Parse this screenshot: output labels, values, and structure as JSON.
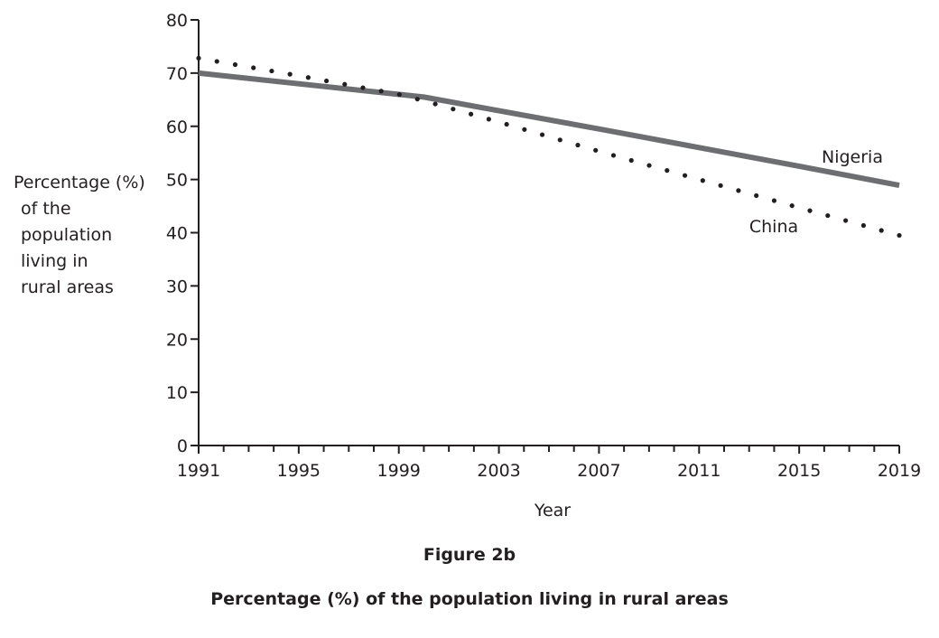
{
  "chart_data": {
    "type": "line",
    "title": "Figure 2b",
    "subtitle": "Percentage (%) of the population living in rural areas",
    "xlabel": "Year",
    "ylabel_lines": [
      "Percentage (%)",
      "of the",
      "population",
      "living in",
      "rural areas"
    ],
    "xlim": [
      1991,
      2019
    ],
    "ylim": [
      0,
      80
    ],
    "x_ticks": [
      "1991",
      "1995",
      "1999",
      "2003",
      "2007",
      "2011",
      "2015",
      "2019"
    ],
    "y_ticks": [
      "0",
      "10",
      "20",
      "30",
      "40",
      "50",
      "60",
      "70",
      "80"
    ],
    "grid": false,
    "series": [
      {
        "name": "Nigeria",
        "style": "solid",
        "color": "#6d6e71",
        "x": [
          1991,
          2000,
          2007,
          2011,
          2015,
          2019
        ],
        "y": [
          70,
          65.5,
          59.5,
          56,
          52.5,
          48.9
        ]
      },
      {
        "name": "China",
        "style": "dotted",
        "color": "#231f20",
        "x": [
          1991,
          1995,
          1999,
          2000,
          2003,
          2007,
          2011,
          2015,
          2019
        ],
        "y": [
          72.8,
          69.5,
          66,
          64.8,
          60.8,
          55.3,
          50,
          44.7,
          39.5
        ]
      }
    ]
  }
}
